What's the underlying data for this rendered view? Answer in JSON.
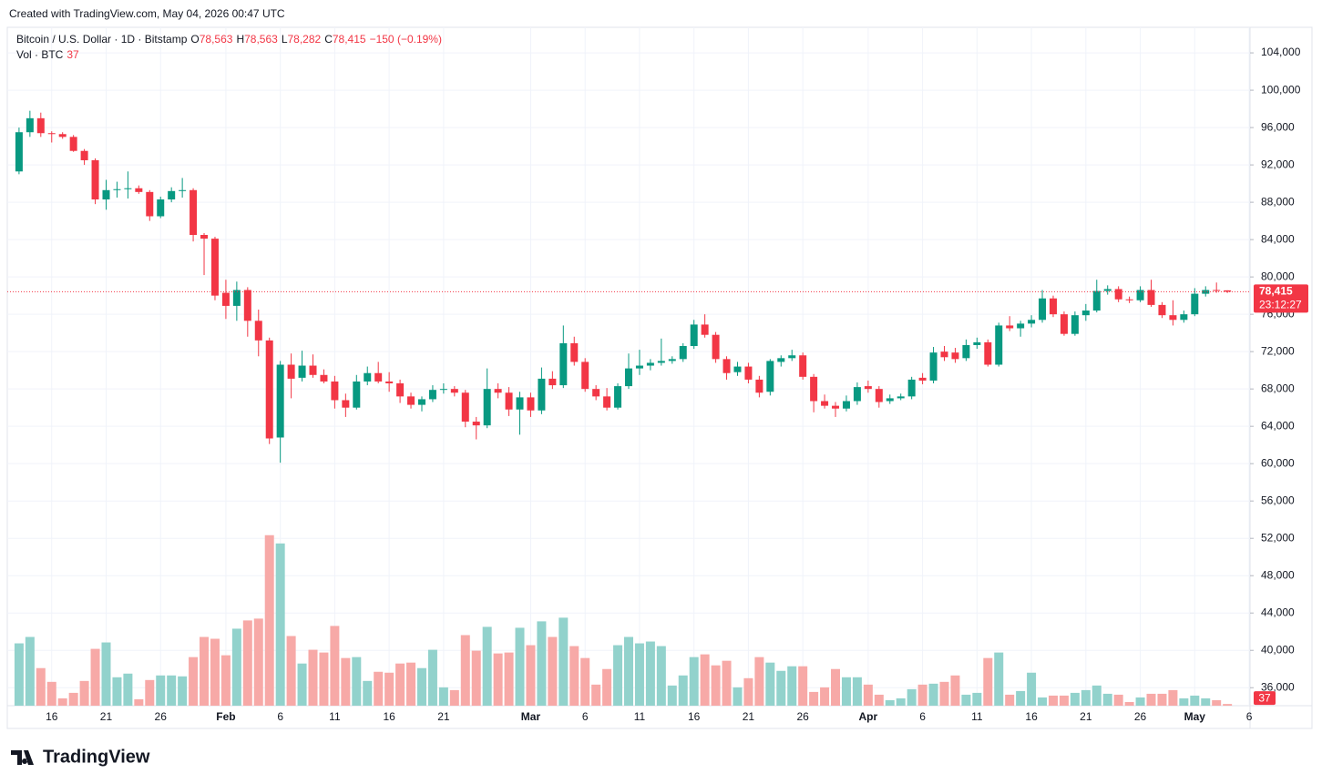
{
  "created": "Created with TradingView.com, May 04, 2026 00:47 UTC",
  "legend": {
    "symbol": "Bitcoin / U.S. Dollar · 1D · Bitstamp",
    "o_key": "O",
    "o": "78,563",
    "h_key": "H",
    "h": "78,563",
    "l_key": "L",
    "l": "78,282",
    "c_key": "C",
    "c": "78,415",
    "change": "−150 (−0.19%)",
    "vol_key": "Vol · BTC"
  },
  "logo": "TradingView",
  "chart_data": {
    "type": "candlestick",
    "up_color": "#089981",
    "down_color": "#f23645",
    "volume_up_color": "#92d2cc",
    "volume_down_color": "#f7a9a7",
    "grid": true,
    "price_label": "78,415",
    "countdown": "23:12:27",
    "open": [
      91300,
      95500,
      97000,
      95400,
      95300,
      95000,
      93500,
      92500,
      88300,
      89300,
      89400,
      89500,
      89100,
      86500,
      88300,
      89200,
      89300,
      84500,
      84100,
      78300,
      76900,
      78600,
      75300,
      73200,
      62800,
      70600,
      69200,
      70500,
      69500,
      68800,
      66800,
      66000,
      68800,
      69700,
      68800,
      68600,
      67200,
      66300,
      66900,
      67900,
      68000,
      67600,
      64500,
      64100,
      68000,
      67600,
      65800,
      67100,
      65700,
      69100,
      68400,
      72900,
      70900,
      68000,
      67200,
      66000,
      68300,
      70200,
      70500,
      70800,
      71000,
      71200,
      72600,
      74900,
      73800,
      71200,
      69800,
      70400,
      69000,
      67700,
      70900,
      71300,
      71600,
      69300,
      66700,
      66200,
      65900,
      66700,
      68300,
      68000,
      66700,
      67000,
      67200,
      69200,
      68900,
      72000,
      71900,
      71300,
      72700,
      73000,
      70600,
      74800,
      74500,
      75000,
      75400,
      77700,
      76000,
      73900,
      75900,
      76400,
      78500,
      78700,
      77600,
      77500,
      78600,
      77000,
      75900,
      75400,
      76000,
      78200,
      78600,
      78563
    ],
    "high": [
      96000,
      97800,
      97600,
      95600,
      95500,
      95200,
      93700,
      92700,
      90400,
      90200,
      91300,
      89800,
      89300,
      88600,
      89600,
      90600,
      89500,
      84700,
      84300,
      79700,
      79500,
      78900,
      76500,
      73500,
      71000,
      71800,
      72100,
      71700,
      70100,
      69400,
      67500,
      69500,
      70400,
      70900,
      69800,
      69000,
      67600,
      67200,
      68400,
      68600,
      68300,
      67900,
      65000,
      70200,
      68600,
      68200,
      67700,
      67600,
      70300,
      69900,
      74800,
      73600,
      71300,
      68400,
      68100,
      68600,
      71800,
      72200,
      71200,
      73400,
      71500,
      72900,
      75400,
      76000,
      74100,
      71500,
      70900,
      70800,
      69400,
      71200,
      71600,
      72200,
      71900,
      69600,
      67400,
      66600,
      67300,
      68700,
      68900,
      68300,
      67400,
      67500,
      69300,
      69700,
      72500,
      72600,
      72400,
      73300,
      73500,
      73300,
      75100,
      75800,
      75300,
      75900,
      78600,
      78000,
      76300,
      76300,
      77100,
      79700,
      79100,
      79000,
      77900,
      79000,
      79700,
      77300,
      77500,
      76400,
      78800,
      79000,
      79400,
      78563
    ],
    "low": [
      91000,
      95000,
      95000,
      94400,
      94800,
      93400,
      92000,
      87800,
      87200,
      88500,
      88400,
      88900,
      86000,
      86300,
      88000,
      88500,
      83800,
      80200,
      77500,
      75500,
      75300,
      73600,
      71500,
      62100,
      60100,
      67000,
      68800,
      69200,
      68600,
      65900,
      65000,
      65800,
      68400,
      68600,
      67700,
      66500,
      65900,
      65600,
      66600,
      67500,
      67200,
      63900,
      62600,
      63800,
      67000,
      65100,
      63100,
      65000,
      65300,
      68000,
      68100,
      70500,
      67700,
      66800,
      65700,
      65800,
      68000,
      69500,
      70000,
      70500,
      70700,
      70900,
      72300,
      73500,
      70800,
      69000,
      69400,
      68600,
      67100,
      67300,
      70400,
      71000,
      69000,
      65500,
      65900,
      65000,
      65600,
      66300,
      67600,
      66000,
      66400,
      66800,
      66900,
      68500,
      68600,
      71000,
      70800,
      71000,
      72300,
      70400,
      70400,
      74200,
      73600,
      74600,
      75100,
      75700,
      73700,
      73700,
      75300,
      76200,
      78100,
      77300,
      77200,
      77300,
      76800,
      75600,
      74800,
      75100,
      75800,
      77900,
      78300,
      78282
    ],
    "close": [
      95500,
      97000,
      95400,
      95300,
      95000,
      93500,
      92500,
      88300,
      89300,
      89400,
      89500,
      89100,
      86500,
      88300,
      89200,
      89300,
      84500,
      84100,
      78000,
      76900,
      78600,
      75300,
      73200,
      62700,
      70600,
      69100,
      70500,
      69500,
      68800,
      66800,
      66000,
      68800,
      69700,
      68800,
      68600,
      67200,
      66300,
      66900,
      67900,
      68000,
      67600,
      64500,
      64100,
      68000,
      67600,
      65800,
      67100,
      65700,
      69100,
      68400,
      72900,
      70900,
      68000,
      67200,
      66000,
      68300,
      70200,
      70500,
      70800,
      71000,
      71200,
      72600,
      74900,
      73800,
      71200,
      69700,
      70400,
      69000,
      67600,
      71000,
      71300,
      71600,
      69300,
      66700,
      66200,
      65900,
      66700,
      68200,
      68000,
      66600,
      67000,
      67200,
      69000,
      68900,
      71900,
      71400,
      71200,
      72700,
      73000,
      70600,
      74800,
      74500,
      75000,
      75400,
      77700,
      76000,
      73900,
      75900,
      76400,
      78500,
      78700,
      77600,
      77500,
      78600,
      77000,
      75900,
      75400,
      76000,
      78200,
      78600,
      78563,
      78415
    ],
    "volume": [
      1360,
      1500,
      820,
      520,
      160,
      280,
      540,
      1240,
      1380,
      620,
      700,
      140,
      560,
      660,
      660,
      640,
      1060,
      1500,
      1460,
      1100,
      1680,
      1860,
      1900,
      3720,
      3540,
      1520,
      920,
      1220,
      1160,
      1740,
      1040,
      1060,
      540,
      740,
      720,
      920,
      940,
      820,
      1220,
      400,
      340,
      1540,
      1200,
      1720,
      1140,
      1160,
      1700,
      1320,
      1840,
      1500,
      1920,
      1300,
      1040,
      460,
      800,
      1320,
      1500,
      1360,
      1400,
      1300,
      440,
      660,
      1060,
      1120,
      880,
      980,
      400,
      600,
      1060,
      940,
      760,
      860,
      860,
      300,
      400,
      800,
      620,
      620,
      460,
      240,
      120,
      160,
      360,
      460,
      480,
      520,
      660,
      240,
      280,
      1040,
      1160,
      240,
      320,
      720,
      180,
      220,
      220,
      280,
      340,
      440,
      260,
      240,
      80,
      180,
      260,
      260,
      340,
      160,
      220,
      160,
      120,
      37
    ],
    "ylim": [
      34073,
      106738
    ],
    "vlim": [
      0,
      14800
    ],
    "xlim": [
      -1.08,
      113.08
    ],
    "yticks": [
      {
        "value": 36000,
        "label": "36,000"
      },
      {
        "value": 40000,
        "label": "40,000"
      },
      {
        "value": 44000,
        "label": "44,000"
      },
      {
        "value": 48000,
        "label": "48,000"
      },
      {
        "value": 52000,
        "label": "52,000"
      },
      {
        "value": 56000,
        "label": "56,000"
      },
      {
        "value": 60000,
        "label": "60,000"
      },
      {
        "value": 64000,
        "label": "64,000"
      },
      {
        "value": 68000,
        "label": "68,000"
      },
      {
        "value": 72000,
        "label": "72,000"
      },
      {
        "value": 76000,
        "label": "76,000"
      },
      {
        "value": 80000,
        "label": "80,000"
      },
      {
        "value": 84000,
        "label": "84,000"
      },
      {
        "value": 88000,
        "label": "88,000"
      },
      {
        "value": 92000,
        "label": "92,000"
      },
      {
        "value": 96000,
        "label": "96,000"
      },
      {
        "value": 100000,
        "label": "100,000"
      },
      {
        "value": 104000,
        "label": "104,000"
      }
    ],
    "xticks": [
      {
        "value": 3,
        "label": "16"
      },
      {
        "value": 8,
        "label": "21"
      },
      {
        "value": 13,
        "label": "26"
      },
      {
        "value": 19,
        "label": "Feb"
      },
      {
        "value": 24,
        "label": "6"
      },
      {
        "value": 29,
        "label": "11"
      },
      {
        "value": 34,
        "label": "16"
      },
      {
        "value": 39,
        "label": "21"
      },
      {
        "value": 47,
        "label": "Mar"
      },
      {
        "value": 52,
        "label": "6"
      },
      {
        "value": 57,
        "label": "11"
      },
      {
        "value": 62,
        "label": "16"
      },
      {
        "value": 67,
        "label": "21"
      },
      {
        "value": 72,
        "label": "26"
      },
      {
        "value": 78,
        "label": "Apr"
      },
      {
        "value": 83,
        "label": "6"
      },
      {
        "value": 88,
        "label": "11"
      },
      {
        "value": 93,
        "label": "16"
      },
      {
        "value": 98,
        "label": "21"
      },
      {
        "value": 103,
        "label": "26"
      },
      {
        "value": 108,
        "label": "May"
      },
      {
        "value": 113,
        "label": "6"
      }
    ]
  }
}
